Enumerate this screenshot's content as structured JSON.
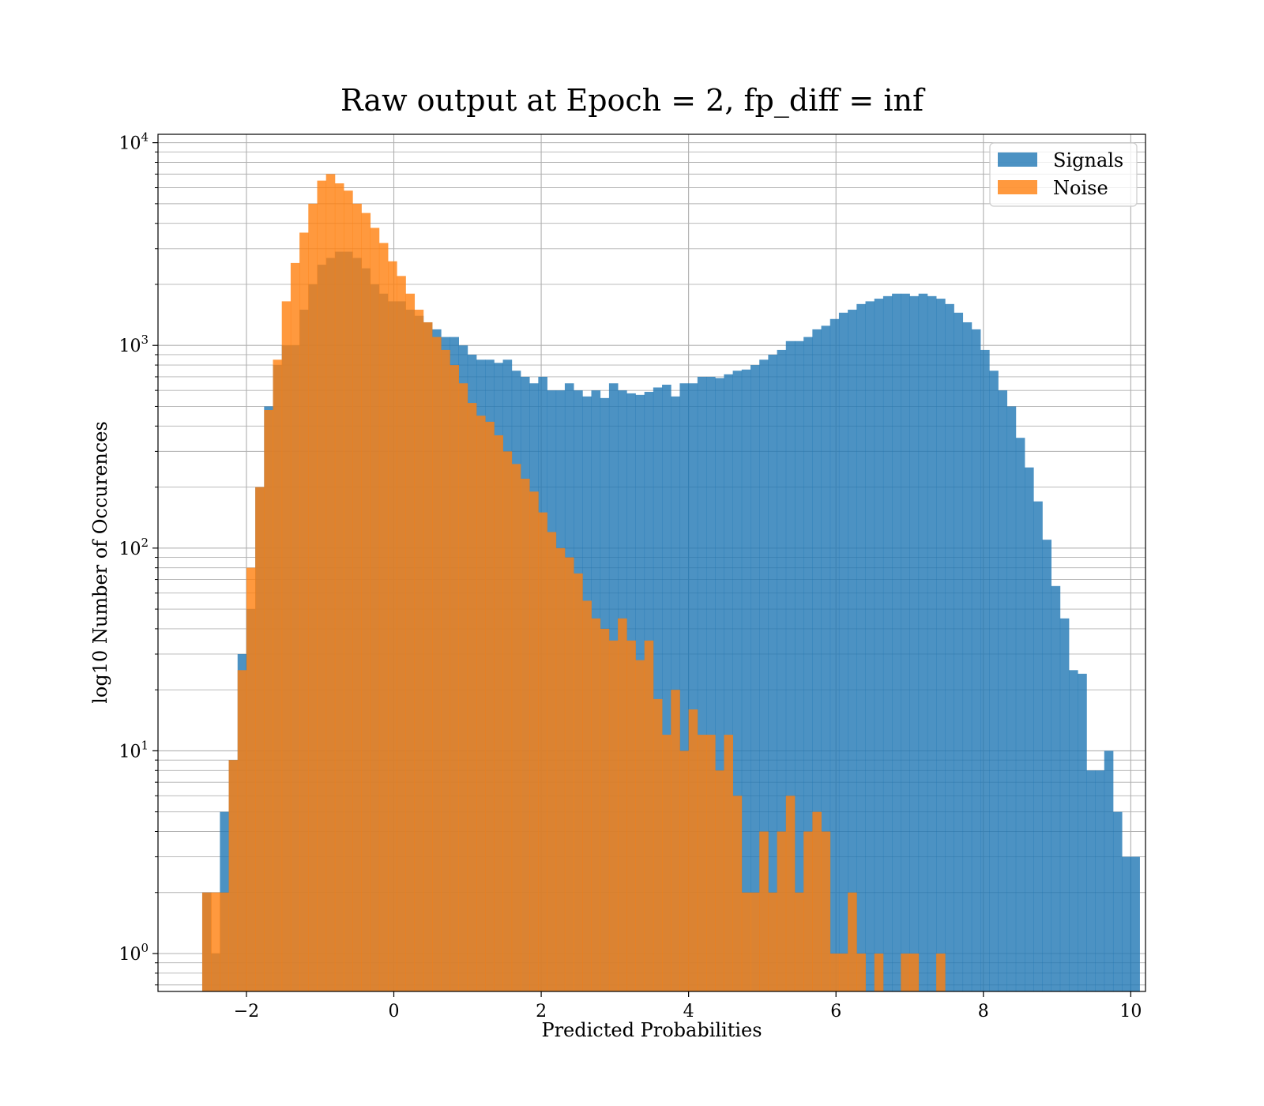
{
  "chart_data": {
    "type": "bar",
    "title": "Raw output at Epoch = 2, fp_diff = inf",
    "xlabel": "Predicted Probabilities",
    "ylabel": "log10 Number of Occurences",
    "xlim": [
      -3.2,
      10.2
    ],
    "ylim": [
      0.65,
      11000
    ],
    "yscale": "log",
    "grid": true,
    "grid_minor": true,
    "legend_position": "top-right",
    "x_ticks": [
      -2,
      0,
      2,
      4,
      6,
      8,
      10
    ],
    "x_tick_labels": [
      "−2",
      "0",
      "2",
      "4",
      "6",
      "8",
      "10"
    ],
    "y_ticks": [
      {
        "value": 1,
        "base": "10",
        "exp": "0"
      },
      {
        "value": 10,
        "base": "10",
        "exp": "1"
      },
      {
        "value": 100,
        "base": "10",
        "exp": "2"
      },
      {
        "value": 1000,
        "base": "10",
        "exp": "3"
      },
      {
        "value": 10000,
        "base": "10",
        "exp": "4"
      }
    ],
    "series": [
      {
        "name": "Signals",
        "color": "#1f77b4",
        "opacity": 0.8,
        "bin_start": -2.6,
        "bin_width": 0.12,
        "values": [
          2,
          1,
          5,
          9,
          30,
          50,
          200,
          500,
          800,
          1000,
          1000,
          1500,
          2000,
          2500,
          2700,
          2900,
          2900,
          2700,
          2400,
          2000,
          1800,
          1650,
          1650,
          1500,
          1400,
          1300,
          1200,
          1100,
          1100,
          1000,
          900,
          850,
          850,
          820,
          850,
          750,
          700,
          650,
          700,
          600,
          600,
          650,
          600,
          560,
          600,
          550,
          650,
          600,
          580,
          570,
          590,
          620,
          640,
          560,
          650,
          650,
          700,
          700,
          690,
          720,
          750,
          760,
          800,
          850,
          900,
          950,
          1050,
          1050,
          1100,
          1200,
          1250,
          1350,
          1450,
          1500,
          1600,
          1650,
          1700,
          1750,
          1800,
          1800,
          1750,
          1800,
          1750,
          1700,
          1600,
          1450,
          1300,
          1200,
          950,
          750,
          600,
          500,
          350,
          250,
          170,
          110,
          65,
          45,
          25,
          24,
          8,
          8,
          10,
          5,
          3,
          3
        ]
      },
      {
        "name": "Noise",
        "color": "#ff7f0e",
        "opacity": 0.8,
        "bin_start": -2.6,
        "bin_width": 0.12,
        "values": [
          2,
          2,
          2,
          9,
          25,
          80,
          200,
          480,
          850,
          1650,
          2550,
          3600,
          5000,
          6500,
          7000,
          6300,
          5800,
          5000,
          4500,
          3800,
          3200,
          2600,
          2200,
          1800,
          1500,
          1300,
          1100,
          950,
          800,
          650,
          520,
          450,
          420,
          360,
          300,
          260,
          220,
          190,
          150,
          120,
          100,
          90,
          75,
          55,
          45,
          40,
          35,
          45,
          35,
          28,
          35,
          18,
          12,
          20,
          10,
          16,
          12,
          12,
          8,
          12,
          6,
          2,
          2,
          4,
          2,
          4,
          6,
          2,
          4,
          5,
          4,
          1,
          1,
          2,
          1,
          0,
          1,
          0,
          0,
          1,
          1,
          0,
          0,
          1
        ]
      }
    ],
    "annotation_base": "10"
  }
}
